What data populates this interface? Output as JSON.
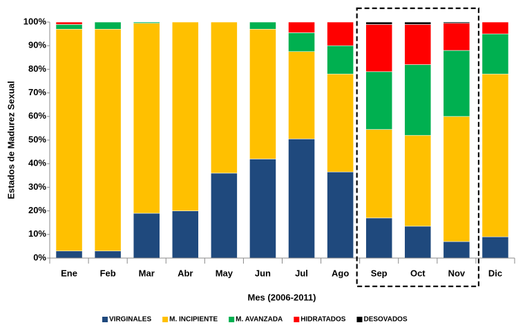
{
  "chart_data": {
    "type": "stacked-bar",
    "y_label": "Estados de Madurez Sexual",
    "x_label": "Mes (2006-2011)",
    "categories": [
      "Ene",
      "Feb",
      "Mar",
      "Abr",
      "May",
      "Jun",
      "Jul",
      "Ago",
      "Sep",
      "Oct",
      "Nov",
      "Dic"
    ],
    "series": [
      {
        "name": "VIRGINALES",
        "color": "#1f497d",
        "values": [
          3,
          3,
          19,
          20,
          36,
          42,
          50.5,
          36.5,
          17,
          13.5,
          7,
          9
        ]
      },
      {
        "name": "M. INCIPIENTE",
        "color": "#ffc000",
        "values": [
          94,
          94,
          80.5,
          80,
          64,
          55,
          37,
          41.5,
          37.5,
          38.5,
          53,
          69
        ]
      },
      {
        "name": "M. AVANZADA",
        "color": "#00b050",
        "values": [
          2,
          3,
          0.5,
          0,
          0,
          3,
          8,
          12,
          24.5,
          30,
          28,
          17
        ]
      },
      {
        "name": "HIDRATADOS",
        "color": "#ff0000",
        "values": [
          1,
          0,
          0,
          0,
          0,
          0,
          4.5,
          10,
          20,
          17,
          11.5,
          5
        ]
      },
      {
        "name": "DESOVADOS",
        "color": "#000000",
        "values": [
          0,
          0,
          0,
          0,
          0,
          0,
          0,
          0,
          1,
          1,
          0.5,
          0
        ]
      }
    ],
    "ylim": [
      0,
      100
    ],
    "yticks": [
      {
        "value": 0,
        "label": "0%"
      },
      {
        "value": 10,
        "label": "10%"
      },
      {
        "value": 20,
        "label": "20%"
      },
      {
        "value": 30,
        "label": "30%"
      },
      {
        "value": 40,
        "label": "40%"
      },
      {
        "value": 50,
        "label": "50%"
      },
      {
        "value": 60,
        "label": "60%"
      },
      {
        "value": 70,
        "label": "70%"
      },
      {
        "value": 80,
        "label": "80%"
      },
      {
        "value": 90,
        "label": "90%"
      },
      {
        "value": 100,
        "label": "100%"
      }
    ],
    "grid": false,
    "legend": "bottom"
  }
}
